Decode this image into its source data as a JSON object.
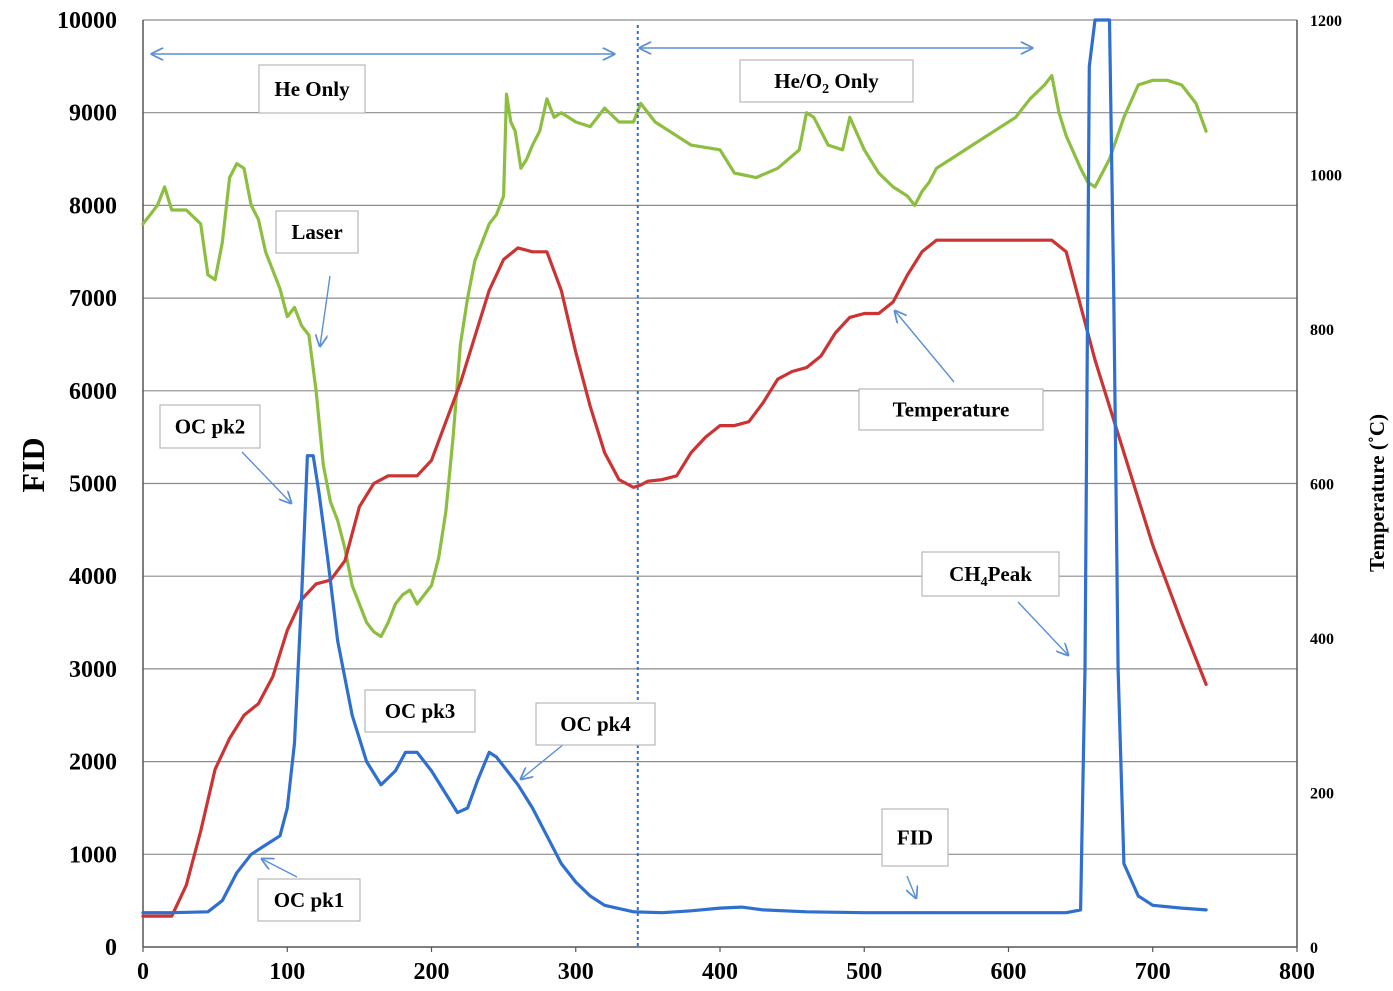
{
  "chart_data": {
    "type": "line",
    "ylabel": "FID",
    "y2label": "Temperature (˚C)",
    "xlim": [
      0,
      800
    ],
    "ylim": [
      0,
      10000
    ],
    "y2lim": [
      0,
      1200
    ],
    "x_ticks": [
      "0",
      "100",
      "200",
      "300",
      "400",
      "500",
      "600",
      "700",
      "800"
    ],
    "y_ticks": [
      "0",
      "1000",
      "2000",
      "3000",
      "4000",
      "5000",
      "6000",
      "7000",
      "8000",
      "9000",
      "10000"
    ],
    "y2_ticks": [
      "0",
      "200",
      "400",
      "600",
      "800",
      "1000",
      "1200"
    ],
    "grid": "horizontal",
    "colors": {
      "fid": "#2f6fcf",
      "temperature": "#cc3333",
      "laser": "#8cbf3f",
      "annotation": "#5b8fd6"
    },
    "series": [
      {
        "name": "FID",
        "axis": "left",
        "x": [
          0,
          20,
          45,
          55,
          65,
          75,
          85,
          95,
          100,
          105,
          110,
          114,
          118,
          122,
          128,
          135,
          145,
          155,
          165,
          175,
          182,
          190,
          200,
          210,
          218,
          225,
          232,
          240,
          245,
          250,
          260,
          270,
          280,
          290,
          300,
          310,
          320,
          340,
          360,
          380,
          400,
          415,
          430,
          460,
          500,
          550,
          600,
          640,
          650,
          653,
          656,
          660,
          665,
          670,
          673,
          676,
          680,
          690,
          700,
          720,
          737
        ],
        "y": [
          370,
          370,
          380,
          500,
          800,
          1000,
          1100,
          1200,
          1500,
          2200,
          3800,
          5300,
          5300,
          4900,
          4200,
          3300,
          2500,
          2000,
          1750,
          1900,
          2100,
          2100,
          1900,
          1650,
          1450,
          1500,
          1800,
          2100,
          2050,
          1950,
          1750,
          1500,
          1200,
          900,
          700,
          550,
          450,
          380,
          370,
          390,
          420,
          430,
          400,
          380,
          370,
          370,
          370,
          370,
          400,
          3000,
          9500,
          10000,
          10000,
          10000,
          7000,
          3000,
          900,
          550,
          450,
          420,
          400
        ]
      },
      {
        "name": "Temperature",
        "axis": "right",
        "x": [
          0,
          20,
          30,
          40,
          50,
          60,
          70,
          80,
          90,
          100,
          110,
          120,
          130,
          140,
          150,
          160,
          170,
          180,
          190,
          200,
          210,
          220,
          230,
          240,
          250,
          260,
          270,
          280,
          290,
          300,
          310,
          320,
          330,
          340,
          345,
          350,
          360,
          370,
          380,
          390,
          400,
          410,
          420,
          430,
          440,
          450,
          460,
          470,
          480,
          490,
          500,
          510,
          520,
          530,
          540,
          550,
          560,
          580,
          600,
          620,
          630,
          640,
          660,
          680,
          700,
          720,
          737
        ],
        "y": [
          40,
          40,
          80,
          150,
          230,
          270,
          300,
          315,
          350,
          410,
          450,
          470,
          475,
          500,
          570,
          600,
          610,
          610,
          610,
          630,
          680,
          730,
          790,
          850,
          890,
          905,
          900,
          900,
          850,
          770,
          700,
          640,
          605,
          595,
          598,
          603,
          605,
          610,
          640,
          660,
          675,
          675,
          680,
          705,
          735,
          745,
          750,
          765,
          795,
          815,
          820,
          820,
          835,
          870,
          900,
          915,
          915,
          915,
          915,
          915,
          915,
          900,
          760,
          640,
          520,
          420,
          340
        ]
      },
      {
        "name": "Laser",
        "axis": "left",
        "x": [
          0,
          5,
          10,
          15,
          20,
          30,
          40,
          45,
          50,
          55,
          60,
          65,
          70,
          75,
          80,
          85,
          90,
          95,
          100,
          105,
          110,
          115,
          120,
          125,
          130,
          135,
          140,
          145,
          150,
          155,
          160,
          165,
          170,
          175,
          180,
          185,
          190,
          195,
          200,
          205,
          210,
          215,
          220,
          225,
          230,
          235,
          240,
          245,
          250,
          252,
          255,
          258,
          262,
          266,
          270,
          275,
          280,
          285,
          290,
          300,
          310,
          320,
          330,
          340,
          345,
          355,
          365,
          380,
          400,
          410,
          425,
          440,
          455,
          460,
          465,
          475,
          485,
          490,
          500,
          510,
          520,
          530,
          535,
          540,
          545,
          550,
          560,
          575,
          590,
          605,
          615,
          625,
          630,
          635,
          640,
          650,
          655,
          660,
          670,
          680,
          690,
          700,
          710,
          720,
          730,
          737
        ],
        "y": [
          7800,
          7900,
          8000,
          8200,
          7950,
          7950,
          7800,
          7250,
          7200,
          7600,
          8300,
          8450,
          8400,
          8000,
          7850,
          7500,
          7300,
          7100,
          6800,
          6900,
          6700,
          6600,
          6000,
          5200,
          4800,
          4600,
          4300,
          3900,
          3700,
          3500,
          3400,
          3350,
          3500,
          3700,
          3800,
          3850,
          3700,
          3800,
          3900,
          4200,
          4700,
          5500,
          6500,
          7000,
          7400,
          7600,
          7800,
          7900,
          8100,
          9200,
          8900,
          8800,
          8400,
          8500,
          8650,
          8800,
          9150,
          8950,
          9000,
          8900,
          8850,
          9050,
          8900,
          8900,
          9100,
          8900,
          8800,
          8650,
          8600,
          8350,
          8300,
          8400,
          8600,
          9000,
          8950,
          8650,
          8600,
          8950,
          8600,
          8350,
          8200,
          8100,
          8000,
          8150,
          8250,
          8400,
          8500,
          8650,
          8800,
          8950,
          9150,
          9300,
          9400,
          9000,
          8750,
          8400,
          8250,
          8200,
          8500,
          8950,
          9300,
          9350,
          9350,
          9300,
          9100,
          8800
        ]
      }
    ],
    "annotations": [
      {
        "label": "He Only"
      },
      {
        "label": "He/O",
        "sub": "2",
        "label_suffix": " Only"
      },
      {
        "label": "Laser"
      },
      {
        "label": "Temperature"
      },
      {
        "label": "OC pk2"
      },
      {
        "label": "OC pk1"
      },
      {
        "label": "OC pk3"
      },
      {
        "label": "OC pk4"
      },
      {
        "label": "FID"
      },
      {
        "label": "CH",
        "sub": "4",
        "label_suffix": "Peak"
      }
    ],
    "phase_divider_x": 343
  }
}
